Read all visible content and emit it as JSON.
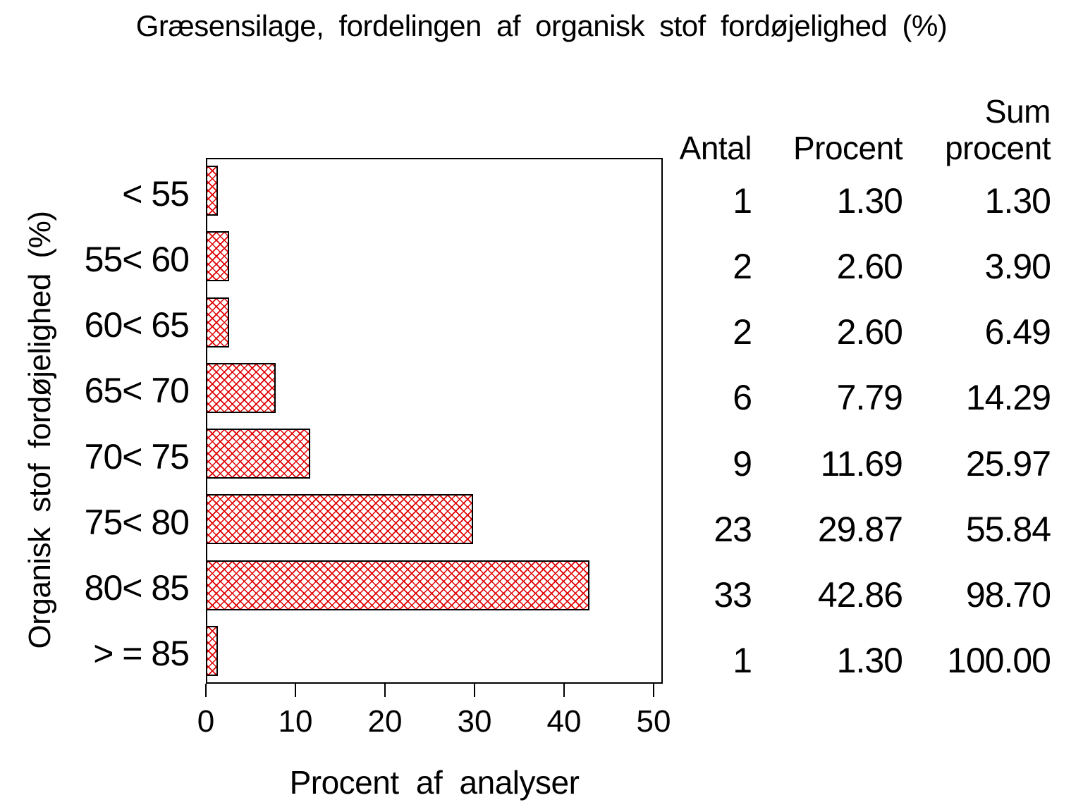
{
  "title": "Græsensilage, fordelingen af organisk stof fordøjelighed (%)",
  "chart_data": {
    "type": "bar",
    "orientation": "horizontal",
    "title": "Græsensilage, fordelingen af organisk stof fordøjelighed (%)",
    "categories": [
      "< 55",
      "55< 60",
      "60< 65",
      "65< 70",
      "70< 75",
      "75< 80",
      "80< 85",
      "> = 85"
    ],
    "values": [
      1.3,
      2.6,
      2.6,
      7.79,
      11.69,
      29.87,
      42.86,
      1.3
    ],
    "xlabel": "Procent af analyser",
    "ylabel": "Organisk stof fordøjelighed (%)",
    "xlim": [
      0,
      50
    ],
    "xticks": [
      "0",
      "10",
      "20",
      "30",
      "40",
      "50"
    ],
    "grid": false,
    "legend": "none",
    "bar_pattern": "diagonal-crosshatch",
    "bar_hatch_color": "#e00000",
    "bar_border_color": "#000000",
    "frame_color": "#000000"
  },
  "table": {
    "header": {
      "antal": "Antal",
      "procent": "Procent",
      "sum_line1": "Sum",
      "sum_line2": "procent"
    },
    "rows": [
      {
        "antal": "1",
        "procent": "1.30",
        "sum": "1.30"
      },
      {
        "antal": "2",
        "procent": "2.60",
        "sum": "3.90"
      },
      {
        "antal": "2",
        "procent": "2.60",
        "sum": "6.49"
      },
      {
        "antal": "6",
        "procent": "7.79",
        "sum": "14.29"
      },
      {
        "antal": "9",
        "procent": "11.69",
        "sum": "25.97"
      },
      {
        "antal": "23",
        "procent": "29.87",
        "sum": "55.84"
      },
      {
        "antal": "33",
        "procent": "42.86",
        "sum": "98.70"
      },
      {
        "antal": "1",
        "procent": "1.30",
        "sum": "100.00"
      }
    ]
  }
}
